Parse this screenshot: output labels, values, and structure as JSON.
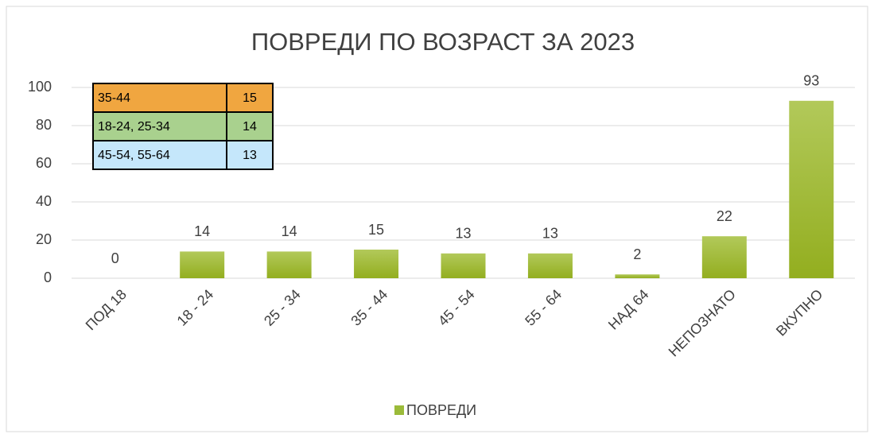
{
  "chart_data": {
    "type": "bar",
    "title": "ПОВРЕДИ ПО ВОЗРАСТ ЗА 2023",
    "categories": [
      "ПОД 18",
      "18 - 24",
      "25 - 34",
      "35 - 44",
      "45 - 54",
      "55 - 64",
      "НАД 64",
      "НЕПОЗНАТО",
      "ВКУПНО"
    ],
    "series": [
      {
        "name": "ПОВРЕДИ",
        "color": "#9bbb3a",
        "values": [
          0,
          14,
          14,
          15,
          13,
          13,
          2,
          22,
          93
        ]
      }
    ],
    "ylim": [
      0,
      100
    ],
    "yticks": [
      0,
      20,
      40,
      60,
      80,
      100
    ],
    "grid": true,
    "legend": "bottom",
    "inset_table": {
      "rows": [
        {
          "label": "35-44",
          "value": 15,
          "color": "#f0a640"
        },
        {
          "label": "18-24, 25-34",
          "value": 14,
          "color": "#a9d18e"
        },
        {
          "label": "45-54, 55-64",
          "value": 13,
          "color": "#c5e7fb"
        }
      ]
    }
  }
}
